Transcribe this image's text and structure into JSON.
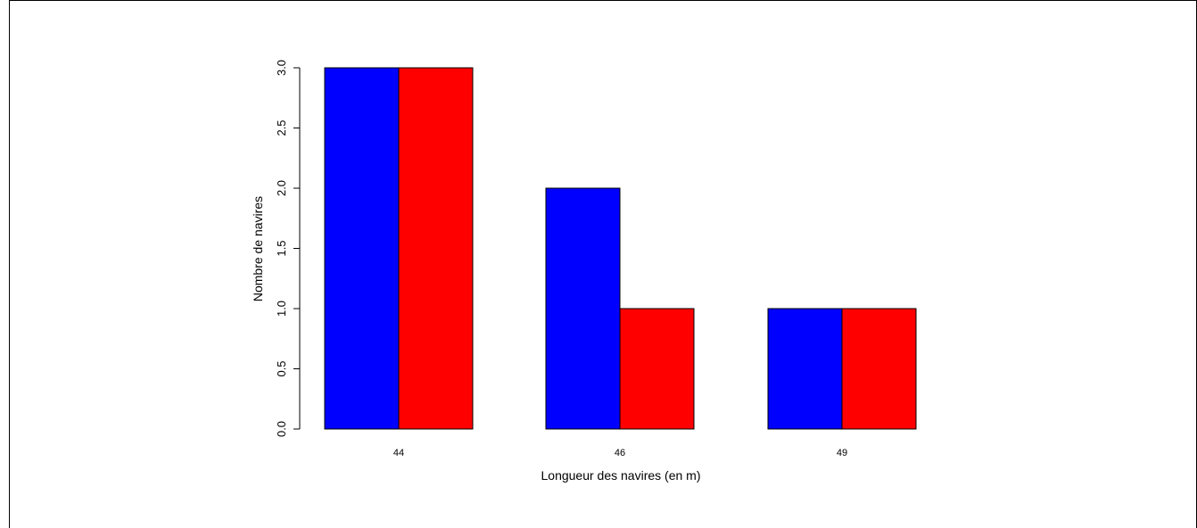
{
  "chart_data": {
    "type": "bar",
    "categories": [
      "44",
      "46",
      "49"
    ],
    "series": [
      {
        "color": "#0000ff",
        "values": [
          3,
          2,
          1
        ]
      },
      {
        "color": "#ff0000",
        "values": [
          3,
          1,
          1
        ]
      }
    ],
    "xlabel": "Longueur des navires (en m)",
    "ylabel": "Nombre de navires",
    "ylim": [
      0,
      3
    ],
    "yticks": [
      0,
      0.5,
      1,
      1.5,
      2,
      2.5,
      3
    ],
    "ytick_labels": [
      "0.0",
      "0.5",
      "1.0",
      "1.5",
      "2.0",
      "2.5",
      "3.0"
    ],
    "grid": false,
    "legend": "none"
  }
}
